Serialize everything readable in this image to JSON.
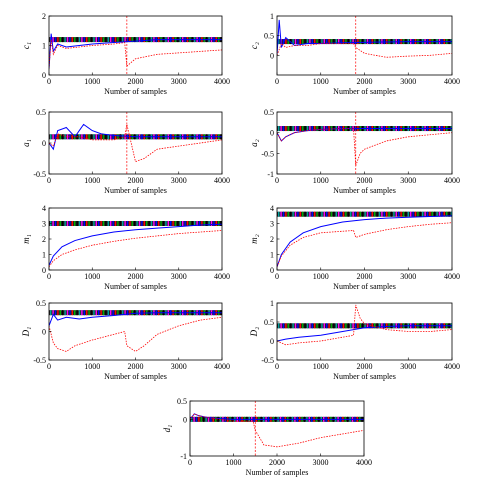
{
  "chart_data": [
    {
      "type": "line",
      "ylabel": "c₁",
      "xlabel": "Number of samples",
      "xlim": [
        0,
        4000
      ],
      "ylim": [
        0,
        2
      ],
      "xticks": [
        0,
        1000,
        2000,
        3000,
        4000
      ],
      "yticks": [
        0,
        1,
        2
      ],
      "true_value": 1.2,
      "event_x": 1800,
      "series": [
        {
          "style": "solid-blue",
          "color": "#0000ff",
          "x": [
            0,
            50,
            100,
            200,
            400,
            700,
            1000,
            1500,
            2000,
            2500,
            3000,
            3500,
            4000
          ],
          "y": [
            0.2,
            1.4,
            0.8,
            1.05,
            0.95,
            1.0,
            1.05,
            1.1,
            1.15,
            1.2,
            1.2,
            1.2,
            1.2
          ]
        },
        {
          "style": "dotted-red",
          "color": "#ff0000",
          "x": [
            0,
            50,
            100,
            200,
            400,
            700,
            1000,
            1500,
            1750,
            1800,
            2000,
            2500,
            3000,
            3500,
            4000
          ],
          "y": [
            0.2,
            1.2,
            0.7,
            1.0,
            0.9,
            0.95,
            1.0,
            1.05,
            1.1,
            0.3,
            0.55,
            0.7,
            0.75,
            0.8,
            0.85
          ]
        }
      ]
    },
    {
      "type": "line",
      "ylabel": "c₂",
      "xlabel": "Number of samples",
      "xlim": [
        0,
        4000
      ],
      "ylim": [
        -0.5,
        1
      ],
      "xticks": [
        0,
        1000,
        2000,
        3000,
        4000
      ],
      "yticks": [
        0,
        0.5,
        1
      ],
      "true_value": 0.35,
      "event_x": 1800,
      "series": [
        {
          "style": "solid-blue",
          "color": "#0000ff",
          "x": [
            0,
            50,
            100,
            200,
            400,
            700,
            1000,
            1500,
            2000,
            2500,
            3000,
            3500,
            4000
          ],
          "y": [
            0.0,
            0.9,
            0.2,
            0.45,
            0.25,
            0.3,
            0.3,
            0.32,
            0.33,
            0.34,
            0.35,
            0.35,
            0.35
          ]
        },
        {
          "style": "dotted-red",
          "color": "#ff0000",
          "x": [
            0,
            100,
            200,
            400,
            700,
            1000,
            1500,
            1750,
            1800,
            2000,
            2500,
            3000,
            3500,
            4000
          ],
          "y": [
            0.0,
            0.3,
            0.2,
            0.25,
            0.25,
            0.3,
            0.3,
            0.3,
            0.2,
            0.05,
            -0.05,
            -0.02,
            0.0,
            0.05
          ]
        }
      ]
    },
    {
      "type": "line",
      "ylabel": "a₁",
      "xlabel": "Number of samples",
      "xlim": [
        0,
        4000
      ],
      "ylim": [
        -0.5,
        0.5
      ],
      "xticks": [
        0,
        1000,
        2000,
        3000,
        4000
      ],
      "yticks": [
        -0.5,
        0,
        0.5
      ],
      "true_value": 0.1,
      "event_x": 1800,
      "series": [
        {
          "style": "solid-blue",
          "color": "#0000ff",
          "x": [
            0,
            100,
            200,
            400,
            600,
            800,
            1000,
            1200,
            1500,
            2000,
            2500,
            3000,
            4000
          ],
          "y": [
            0.0,
            -0.1,
            0.2,
            0.25,
            0.1,
            0.3,
            0.2,
            0.15,
            0.12,
            0.1,
            0.1,
            0.1,
            0.1
          ]
        },
        {
          "style": "dotted-red",
          "color": "#ff0000",
          "x": [
            0,
            100,
            200,
            400,
            700,
            1000,
            1500,
            1750,
            1800,
            1900,
            2000,
            2200,
            2500,
            3000,
            3500,
            4000
          ],
          "y": [
            0.0,
            -0.05,
            0.15,
            0.1,
            0.1,
            0.05,
            0.05,
            0.1,
            0.3,
            0.0,
            -0.3,
            -0.25,
            -0.1,
            -0.05,
            0.0,
            0.05
          ]
        }
      ]
    },
    {
      "type": "line",
      "ylabel": "a₂",
      "xlabel": "Number of samples",
      "xlim": [
        0,
        4000
      ],
      "ylim": [
        -1,
        0.5
      ],
      "xticks": [
        0,
        1000,
        2000,
        3000,
        4000
      ],
      "yticks": [
        -1,
        -0.5,
        0,
        0.5
      ],
      "true_value": 0.1,
      "event_x": 1800,
      "series": [
        {
          "style": "solid-blue",
          "color": "#0000ff",
          "x": [
            0,
            100,
            200,
            400,
            700,
            1000,
            1500,
            2000,
            2500,
            3000,
            4000
          ],
          "y": [
            0.0,
            -0.2,
            -0.1,
            0.0,
            0.05,
            0.08,
            0.1,
            0.1,
            0.1,
            0.1,
            0.1
          ]
        },
        {
          "style": "dotted-red",
          "color": "#ff0000",
          "x": [
            0,
            100,
            200,
            400,
            700,
            1000,
            1500,
            1750,
            1800,
            1900,
            2000,
            2500,
            3000,
            3500,
            4000
          ],
          "y": [
            0.0,
            -0.2,
            -0.1,
            0.0,
            0.05,
            0.08,
            0.1,
            0.1,
            -0.8,
            -0.5,
            -0.4,
            -0.2,
            -0.1,
            -0.05,
            0.0
          ]
        }
      ]
    },
    {
      "type": "line",
      "ylabel": "m₁",
      "xlabel": "Number of samples",
      "xlim": [
        0,
        4000
      ],
      "ylim": [
        0,
        4
      ],
      "xticks": [
        0,
        1000,
        2000,
        3000,
        4000
      ],
      "yticks": [
        0,
        1,
        2,
        3,
        4
      ],
      "true_value": 3.0,
      "event_x": null,
      "series": [
        {
          "style": "solid-blue",
          "color": "#0000ff",
          "x": [
            0,
            100,
            300,
            600,
            1000,
            1500,
            2000,
            2500,
            3000,
            3500,
            4000
          ],
          "y": [
            0.3,
            0.9,
            1.5,
            1.9,
            2.2,
            2.45,
            2.6,
            2.7,
            2.8,
            2.9,
            2.95
          ]
        },
        {
          "style": "dotted-red",
          "color": "#ff0000",
          "x": [
            0,
            100,
            300,
            600,
            1000,
            1500,
            2000,
            2500,
            3000,
            3500,
            4000
          ],
          "y": [
            0.2,
            0.6,
            1.0,
            1.3,
            1.6,
            1.85,
            2.05,
            2.2,
            2.35,
            2.45,
            2.55
          ]
        }
      ]
    },
    {
      "type": "line",
      "ylabel": "m₂",
      "xlabel": "Number of samples",
      "xlim": [
        0,
        4000
      ],
      "ylim": [
        0,
        4
      ],
      "xticks": [
        0,
        1000,
        2000,
        3000,
        4000
      ],
      "yticks": [
        0,
        1,
        2,
        3,
        4
      ],
      "true_value": 3.6,
      "event_x": null,
      "series": [
        {
          "style": "solid-blue",
          "color": "#0000ff",
          "x": [
            0,
            100,
            300,
            600,
            1000,
            1500,
            2000,
            2500,
            3000,
            3500,
            4000
          ],
          "y": [
            0.2,
            1.0,
            1.8,
            2.4,
            2.8,
            3.1,
            3.25,
            3.35,
            3.4,
            3.45,
            3.5
          ]
        },
        {
          "style": "dotted-red",
          "color": "#ff0000",
          "x": [
            0,
            100,
            300,
            600,
            1000,
            1500,
            1750,
            1800,
            2000,
            2500,
            3000,
            3500,
            4000
          ],
          "y": [
            0.2,
            0.9,
            1.6,
            2.1,
            2.4,
            2.5,
            2.55,
            2.1,
            2.3,
            2.6,
            2.8,
            2.95,
            3.05
          ]
        }
      ]
    },
    {
      "type": "line",
      "ylabel": "D₁",
      "xlabel": "Number of samples",
      "xlim": [
        0,
        4000
      ],
      "ylim": [
        -0.5,
        0.5
      ],
      "xticks": [
        0,
        1000,
        2000,
        3000,
        4000
      ],
      "yticks": [
        -0.5,
        0,
        0.5
      ],
      "true_value": 0.33,
      "event_x": null,
      "series": [
        {
          "style": "solid-blue",
          "color": "#0000ff",
          "x": [
            0,
            100,
            200,
            400,
            700,
            1000,
            1500,
            1750,
            2000,
            2500,
            3000,
            4000
          ],
          "y": [
            0.1,
            0.3,
            0.2,
            0.25,
            0.22,
            0.25,
            0.28,
            0.3,
            0.32,
            0.33,
            0.33,
            0.33
          ]
        },
        {
          "style": "dotted-red",
          "color": "#ff0000",
          "x": [
            0,
            100,
            200,
            400,
            600,
            1000,
            1500,
            1750,
            1800,
            2000,
            2200,
            2500,
            3000,
            3500,
            4000
          ],
          "y": [
            0.1,
            -0.2,
            -0.3,
            -0.35,
            -0.25,
            -0.15,
            -0.05,
            0.0,
            -0.25,
            -0.35,
            -0.25,
            -0.05,
            0.1,
            0.2,
            0.25
          ]
        }
      ]
    },
    {
      "type": "line",
      "ylabel": "D₂",
      "xlabel": "Number of samples",
      "xlim": [
        0,
        4000
      ],
      "ylim": [
        -0.5,
        1
      ],
      "xticks": [
        0,
        1000,
        2000,
        3000,
        4000
      ],
      "yticks": [
        -0.5,
        0,
        0.5,
        1
      ],
      "true_value": 0.4,
      "event_x": null,
      "series": [
        {
          "style": "solid-blue",
          "color": "#0000ff",
          "x": [
            0,
            200,
            500,
            1000,
            1500,
            1750,
            2000,
            2500,
            3000,
            4000
          ],
          "y": [
            0.0,
            0.05,
            0.1,
            0.15,
            0.25,
            0.3,
            0.35,
            0.38,
            0.4,
            0.4
          ]
        },
        {
          "style": "dotted-red",
          "color": "#ff0000",
          "x": [
            0,
            200,
            500,
            1000,
            1500,
            1750,
            1800,
            1900,
            2000,
            2500,
            3000,
            3500,
            4000
          ],
          "y": [
            0.0,
            -0.1,
            -0.05,
            0.0,
            0.1,
            0.15,
            0.95,
            0.6,
            0.45,
            0.3,
            0.25,
            0.25,
            0.3
          ]
        }
      ]
    },
    {
      "type": "line",
      "ylabel": "d₁",
      "xlabel": "Number of samples",
      "xlim": [
        0,
        4000
      ],
      "ylim": [
        -1,
        0.5
      ],
      "xticks": [
        0,
        1000,
        2000,
        3000,
        4000
      ],
      "yticks": [
        -1,
        0,
        0.5
      ],
      "true_value": 0.0,
      "event_x": 1500,
      "series": [
        {
          "style": "solid-blue",
          "color": "#0000ff",
          "x": [
            0,
            100,
            200,
            400,
            700,
            1000,
            1500,
            2000,
            4000
          ],
          "y": [
            0.0,
            0.15,
            0.1,
            0.05,
            0.02,
            0.0,
            0.0,
            0.0,
            0.0
          ]
        },
        {
          "style": "dotted-red",
          "color": "#ff0000",
          "x": [
            0,
            100,
            200,
            400,
            700,
            1000,
            1450,
            1500,
            1700,
            2000,
            2500,
            3000,
            3500,
            4000
          ],
          "y": [
            0.0,
            0.15,
            0.1,
            0.05,
            0.0,
            -0.05,
            -0.05,
            -0.3,
            -0.7,
            -0.75,
            -0.65,
            -0.5,
            -0.4,
            -0.3
          ]
        }
      ]
    }
  ],
  "colors": {
    "estimate": "#0000ff",
    "comparison": "#ff0000",
    "true_markers": [
      "#00a0a0",
      "#ff00ff",
      "#0000ff",
      "#ff0000",
      "#00aa00",
      "#000000"
    ]
  }
}
